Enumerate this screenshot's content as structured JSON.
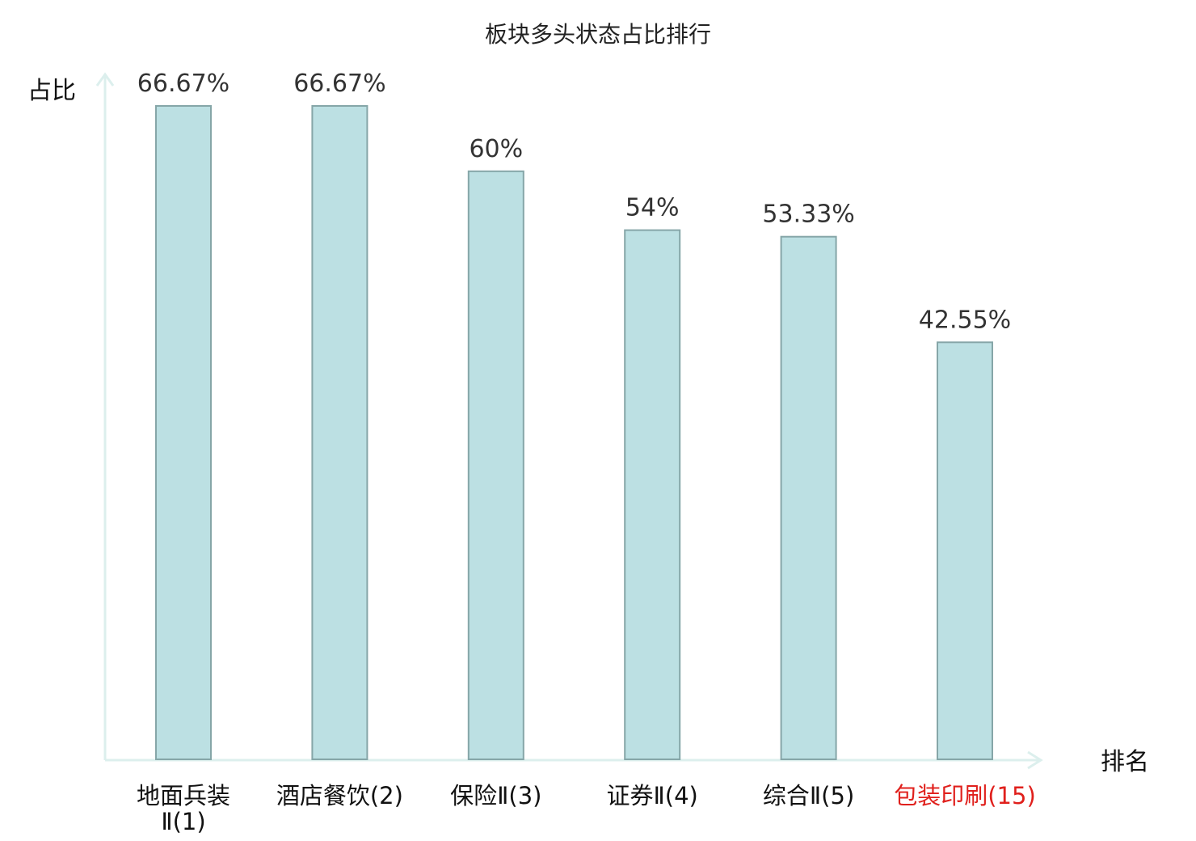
{
  "chart_data": {
    "type": "bar",
    "title": "板块多头状态占比排行",
    "ylabel": "占比",
    "xlabel": "排名",
    "ylim": [
      0,
      66.67
    ],
    "grid": false,
    "categories": [
      {
        "lines": [
          "地面兵装",
          "Ⅱ(1)"
        ],
        "highlight": false
      },
      {
        "lines": [
          "酒店餐饮(2)"
        ],
        "highlight": false
      },
      {
        "lines": [
          "保险Ⅱ(3)"
        ],
        "highlight": false
      },
      {
        "lines": [
          "证券Ⅱ(4)"
        ],
        "highlight": false
      },
      {
        "lines": [
          "综合Ⅱ(5)"
        ],
        "highlight": false
      },
      {
        "lines": [
          "包装印刷(15)"
        ],
        "highlight": true
      }
    ],
    "values": [
      66.67,
      66.67,
      60,
      54,
      53.33,
      42.55
    ],
    "value_labels": [
      "66.67%",
      "66.67%",
      "60%",
      "54%",
      "53.33%",
      "42.55%"
    ],
    "colors": {
      "bar_fill": "#bce0e3",
      "bar_stroke": "#86a6a8",
      "axis": "#dcefed",
      "text": "#111111",
      "highlight_text": "#e0201c"
    }
  }
}
